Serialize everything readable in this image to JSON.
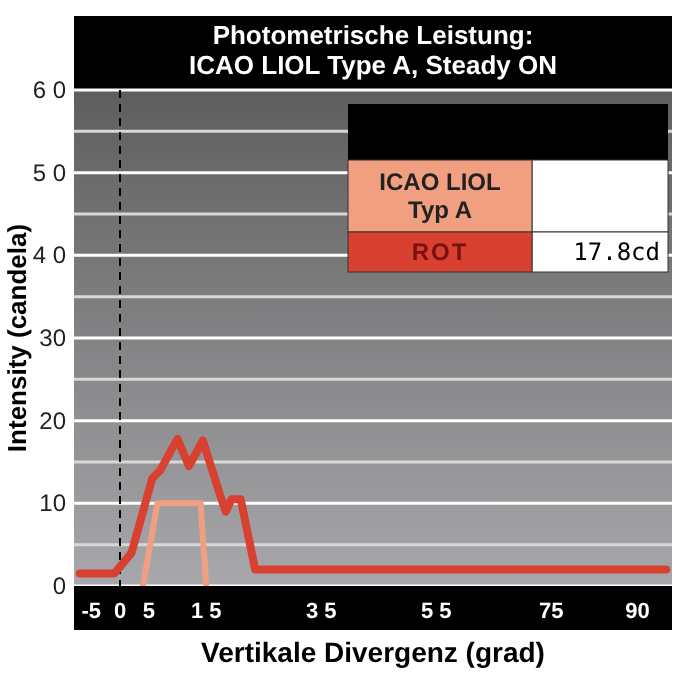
{
  "chart_data": {
    "type": "line",
    "title": "Photometrische Leistung:\nICAO LIOL Type A, Steady ON",
    "xlabel": "Vertikale Divergenz (grad)",
    "ylabel": "Intensity (candela)",
    "xlim": [
      -8,
      96
    ],
    "xticks": [
      -5,
      0,
      5,
      {
        "value": 15,
        "label": "1 5"
      },
      {
        "value": 35,
        "label": "3 5"
      },
      {
        "value": 55,
        "label": "5 5"
      },
      75,
      90
    ],
    "ylim": [
      0,
      60
    ],
    "yticks": [
      0,
      {
        "value": 5,
        "label": null
      },
      10,
      {
        "value": 15,
        "label": null
      },
      20,
      {
        "value": 25,
        "label": null
      },
      30,
      {
        "value": 35,
        "label": null
      },
      {
        "value": 40,
        "label": "4 0"
      },
      {
        "value": 45,
        "label": null
      },
      {
        "value": 50,
        "label": "5 0"
      },
      {
        "value": 55,
        "label": null
      },
      {
        "value": 60,
        "label": "6 0"
      }
    ],
    "grid": "y",
    "legend": "top right",
    "line_style": "solid",
    "marker": "none",
    "ref_lines": [
      {
        "axis": "x",
        "value": 0,
        "label": null,
        "color": "#000000",
        "line_style": "dashed"
      }
    ],
    "annotations": [
      "17.8cd"
    ],
    "series": [
      {
        "name": "ICAO LIOL\nTyp A",
        "color": "#f0a080",
        "x": [
          4,
          6.5,
          14,
          15
        ],
        "values": [
          0,
          10,
          10,
          0
        ]
      },
      {
        "name": "ROT",
        "color": "#d84030",
        "x": [
          -7,
          -1,
          2,
          4,
          5.6,
          7,
          10,
          12,
          14.4,
          17.4,
          18.4,
          19.4,
          21,
          23.5,
          95
        ],
        "values": [
          1.5,
          1.5,
          4,
          9,
          13,
          14,
          17.8,
          14.5,
          17.6,
          11,
          9,
          10.5,
          10.5,
          2,
          2
        ]
      }
    ]
  }
}
